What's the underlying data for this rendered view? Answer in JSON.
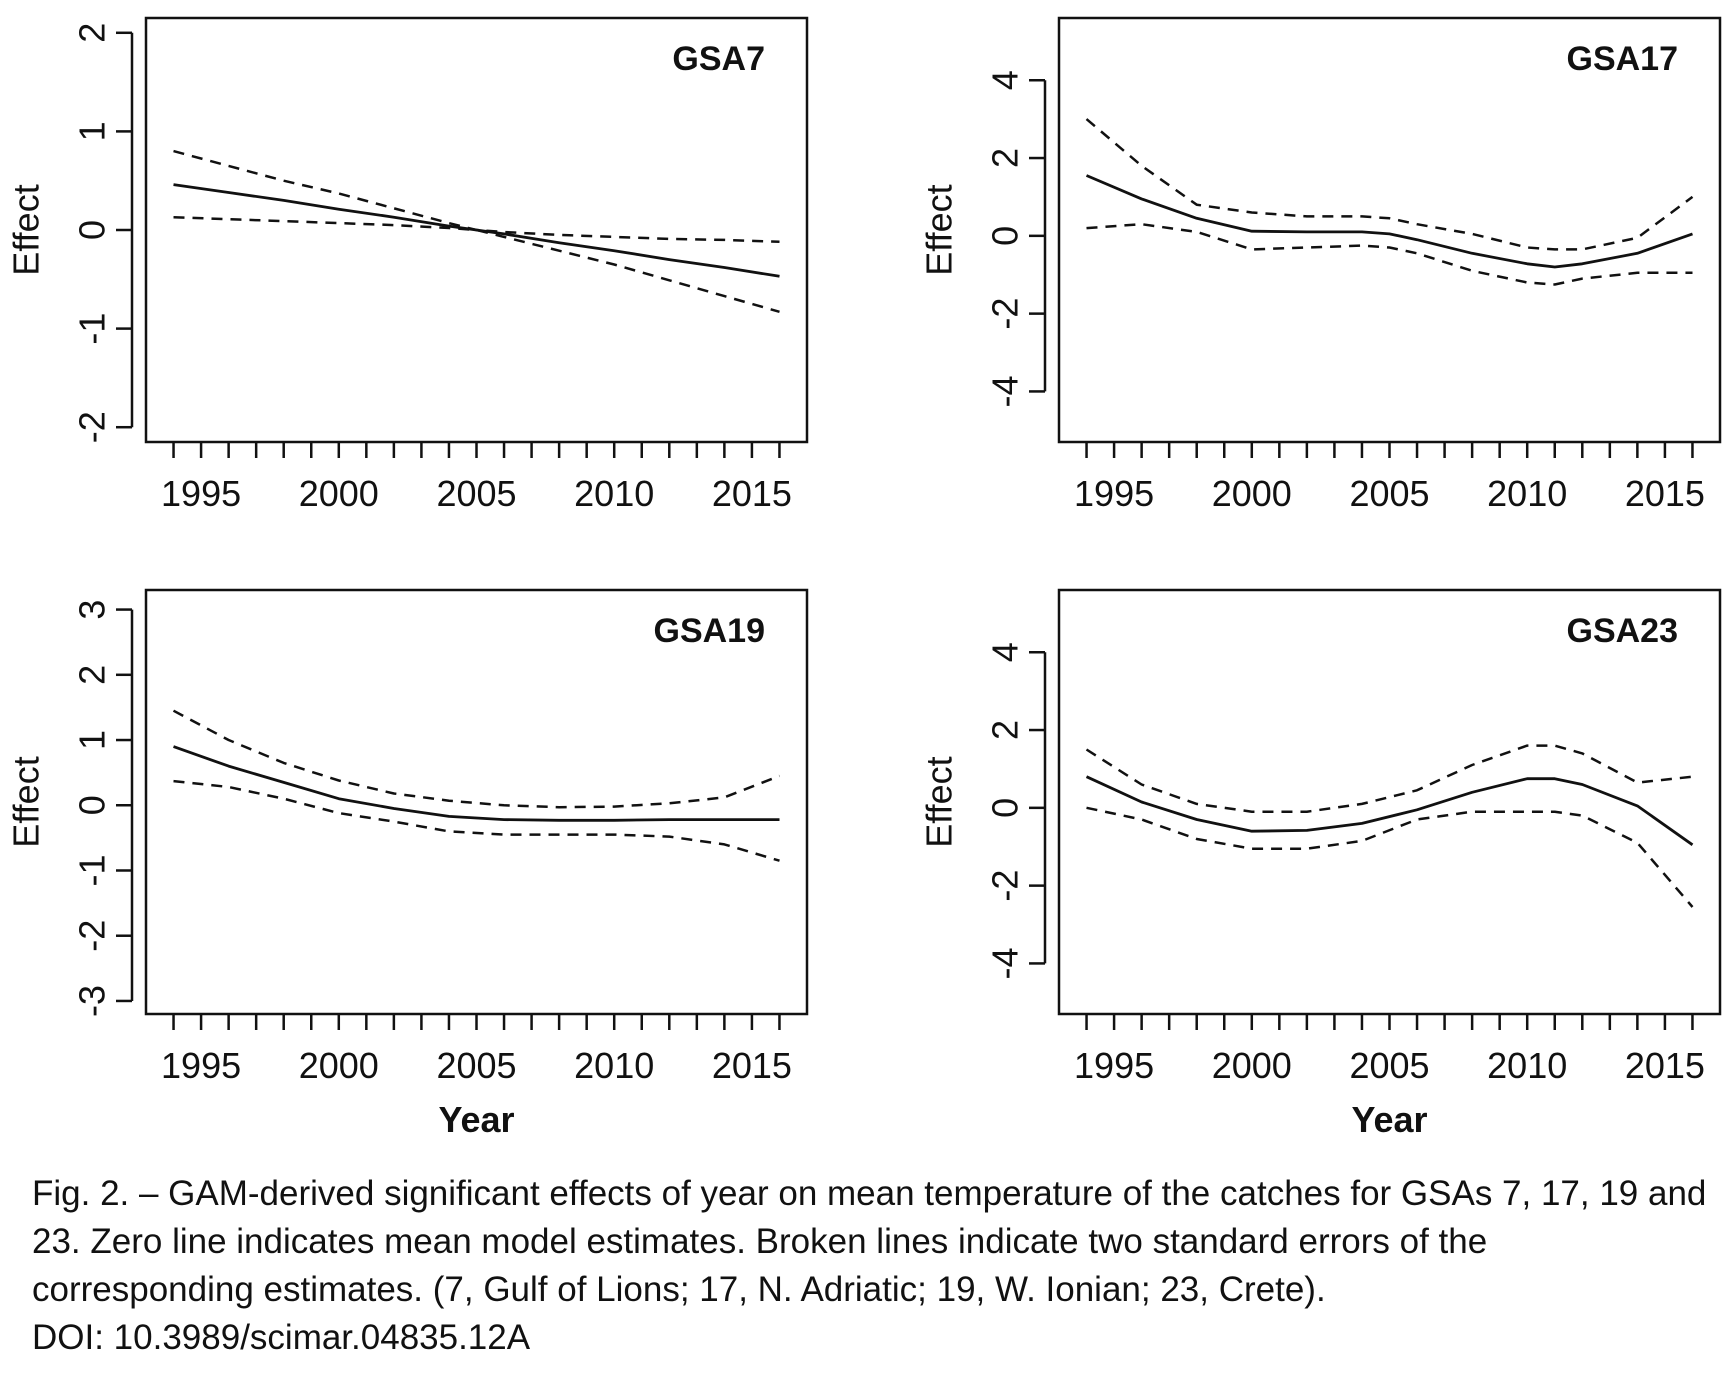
{
  "caption": {
    "text": "Fig. 2. – GAM-derived significant effects of year on mean temperature of the catches for GSAs 7, 17, 19 and 23. Zero line indicates mean model estimates. Broken lines indicate two standard errors of the corresponding estimates. (7, Gulf of Lions; 17, N. Adriatic; 19, W. Ionian; 23, Crete).",
    "doi": "DOI: 10.3989/scimar.04835.12A"
  },
  "chart_data": [
    {
      "type": "line",
      "title": "GSA7",
      "xlabel": "",
      "ylabel": "Effect",
      "xlim": [
        1993,
        2017
      ],
      "ylim": [
        -2.15,
        2.15
      ],
      "xticks": [
        1995,
        2000,
        2005,
        2010,
        2015
      ],
      "yticks": [
        -2,
        -1,
        0,
        1,
        2
      ],
      "x": [
        1994,
        1996,
        1998,
        2000,
        2002,
        2004,
        2005,
        2006,
        2008,
        2010,
        2012,
        2014,
        2016
      ],
      "series": [
        {
          "role": "estimate",
          "style": "solid",
          "values": [
            0.46,
            0.38,
            0.3,
            0.21,
            0.13,
            0.04,
            0.0,
            -0.04,
            -0.13,
            -0.21,
            -0.3,
            -0.38,
            -0.47
          ]
        },
        {
          "role": "upper",
          "style": "dashed",
          "values": [
            0.8,
            0.65,
            0.5,
            0.37,
            0.22,
            0.07,
            0.0,
            -0.02,
            -0.05,
            -0.07,
            -0.09,
            -0.1,
            -0.12
          ]
        },
        {
          "role": "lower",
          "style": "dashed",
          "values": [
            0.13,
            0.11,
            0.09,
            0.07,
            0.05,
            0.02,
            0.0,
            -0.07,
            -0.21,
            -0.35,
            -0.51,
            -0.67,
            -0.83
          ]
        }
      ]
    },
    {
      "type": "line",
      "title": "GSA17",
      "xlabel": "",
      "ylabel": "Effect",
      "xlim": [
        1993,
        2017
      ],
      "ylim": [
        -5.3,
        5.6
      ],
      "xticks": [
        1995,
        2000,
        2005,
        2010,
        2015
      ],
      "yticks": [
        -4,
        -2,
        0,
        2,
        4
      ],
      "x": [
        1994,
        1996,
        1998,
        2000,
        2002,
        2004,
        2005,
        2006,
        2008,
        2010,
        2011,
        2012,
        2014,
        2016
      ],
      "series": [
        {
          "role": "estimate",
          "style": "solid",
          "values": [
            1.55,
            0.95,
            0.45,
            0.12,
            0.1,
            0.1,
            0.05,
            -0.1,
            -0.45,
            -0.72,
            -0.8,
            -0.72,
            -0.45,
            0.05
          ]
        },
        {
          "role": "upper",
          "style": "dashed",
          "values": [
            3.0,
            1.8,
            0.8,
            0.6,
            0.5,
            0.5,
            0.45,
            0.3,
            0.05,
            -0.3,
            -0.35,
            -0.35,
            -0.05,
            1.0
          ]
        },
        {
          "role": "lower",
          "style": "dashed",
          "values": [
            0.2,
            0.3,
            0.1,
            -0.35,
            -0.3,
            -0.25,
            -0.3,
            -0.45,
            -0.9,
            -1.2,
            -1.25,
            -1.1,
            -0.95,
            -0.95
          ]
        }
      ]
    },
    {
      "type": "line",
      "title": "GSA19",
      "xlabel": "Year",
      "ylabel": "Effect",
      "xlim": [
        1993,
        2017
      ],
      "ylim": [
        -3.2,
        3.3
      ],
      "xticks": [
        1995,
        2000,
        2005,
        2010,
        2015
      ],
      "yticks": [
        -3,
        -2,
        -1,
        0,
        1,
        2,
        3
      ],
      "x": [
        1994,
        1996,
        1998,
        2000,
        2002,
        2004,
        2006,
        2008,
        2010,
        2012,
        2014,
        2016
      ],
      "series": [
        {
          "role": "estimate",
          "style": "solid",
          "values": [
            0.9,
            0.6,
            0.35,
            0.1,
            -0.05,
            -0.17,
            -0.22,
            -0.23,
            -0.23,
            -0.22,
            -0.22,
            -0.22
          ]
        },
        {
          "role": "upper",
          "style": "dashed",
          "values": [
            1.45,
            1.0,
            0.65,
            0.38,
            0.18,
            0.07,
            0.0,
            -0.03,
            -0.02,
            0.03,
            0.12,
            0.45
          ]
        },
        {
          "role": "lower",
          "style": "dashed",
          "values": [
            0.37,
            0.28,
            0.1,
            -0.12,
            -0.25,
            -0.4,
            -0.45,
            -0.45,
            -0.45,
            -0.48,
            -0.6,
            -0.85
          ]
        }
      ]
    },
    {
      "type": "line",
      "title": "GSA23",
      "xlabel": "Year",
      "ylabel": "Effect",
      "xlim": [
        1993,
        2017
      ],
      "ylim": [
        -5.3,
        5.6
      ],
      "xticks": [
        1995,
        2000,
        2005,
        2010,
        2015
      ],
      "yticks": [
        -4,
        -2,
        0,
        2,
        4
      ],
      "x": [
        1994,
        1996,
        1998,
        2000,
        2002,
        2004,
        2006,
        2008,
        2010,
        2011,
        2012,
        2014,
        2016
      ],
      "series": [
        {
          "role": "estimate",
          "style": "solid",
          "values": [
            0.8,
            0.15,
            -0.3,
            -0.6,
            -0.58,
            -0.4,
            -0.05,
            0.4,
            0.75,
            0.75,
            0.6,
            0.05,
            -0.95
          ]
        },
        {
          "role": "upper",
          "style": "dashed",
          "values": [
            1.5,
            0.6,
            0.1,
            -0.1,
            -0.1,
            0.1,
            0.45,
            1.1,
            1.6,
            1.6,
            1.4,
            0.65,
            0.8
          ]
        },
        {
          "role": "lower",
          "style": "dashed",
          "values": [
            0.0,
            -0.3,
            -0.8,
            -1.05,
            -1.05,
            -0.85,
            -0.3,
            -0.1,
            -0.1,
            -0.1,
            -0.2,
            -0.9,
            -2.55
          ]
        }
      ]
    }
  ]
}
